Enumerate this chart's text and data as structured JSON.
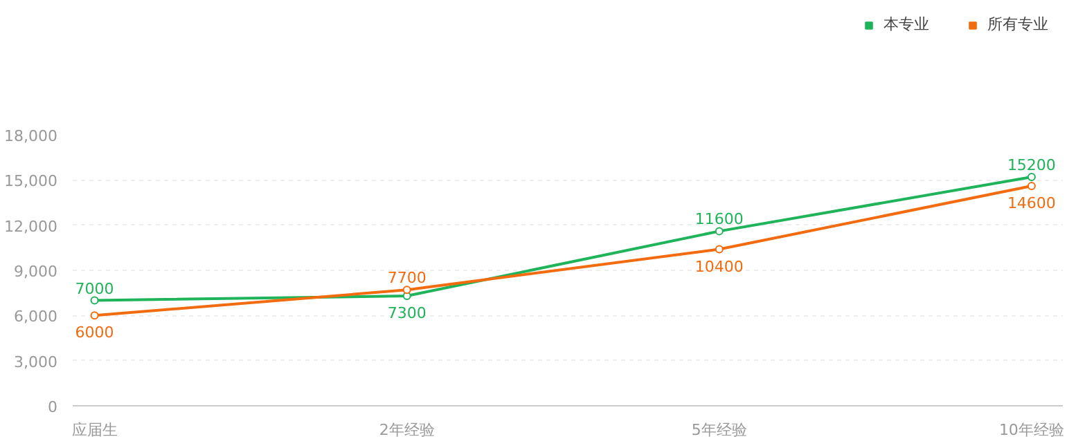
{
  "chart_data": {
    "type": "line",
    "categories": [
      "应届生",
      "2年经验",
      "5年经验",
      "10年经验"
    ],
    "series": [
      {
        "name": "本专业",
        "color": "#1fb35a",
        "values": [
          7000,
          7300,
          11600,
          15200
        ]
      },
      {
        "name": "所有专业",
        "color": "#f26b0f",
        "values": [
          6000,
          7700,
          10400,
          14600
        ]
      }
    ],
    "ylim": [
      0,
      18000
    ],
    "yticks": [
      0,
      {
        "value": 3000,
        "label": "3,000"
      },
      {
        "value": 6000,
        "label": "6,000"
      },
      {
        "value": 9000,
        "label": "9,000"
      },
      {
        "value": 12000,
        "label": "12,000"
      },
      {
        "value": 15000,
        "label": "15,000"
      },
      {
        "value": 18000,
        "label": "18,000"
      }
    ],
    "grid": "y",
    "legend": "top right",
    "marker": "circle",
    "line_style": "solid",
    "data_labels": true
  }
}
